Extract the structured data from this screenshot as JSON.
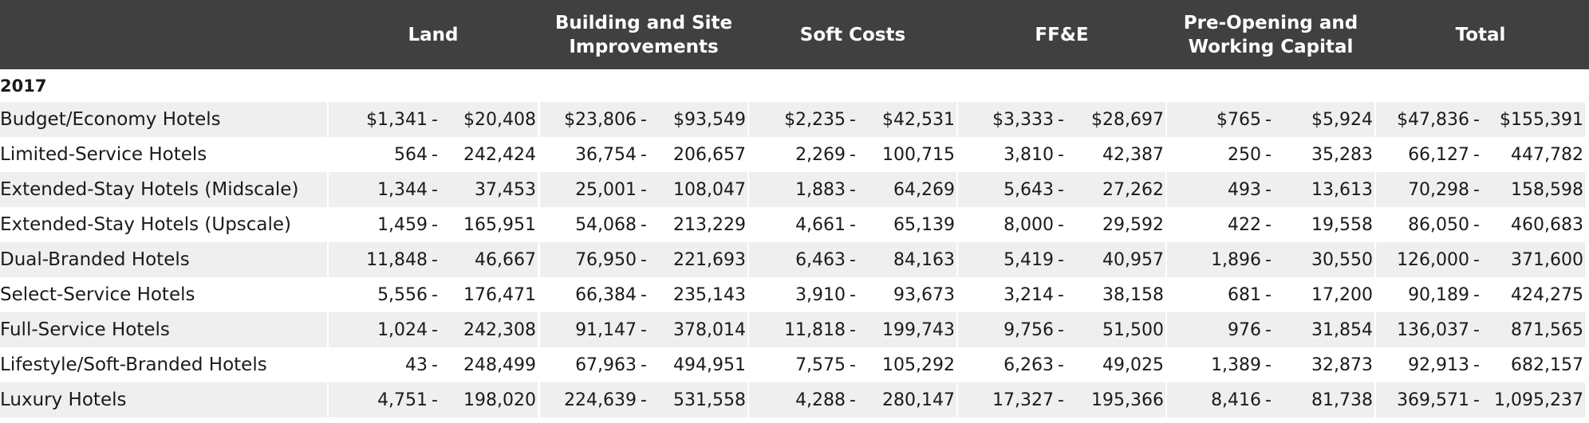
{
  "header": {
    "columns": [
      "Land",
      "Building and Site Improvements",
      "Soft Costs",
      "FF&E",
      "Pre-Opening and Working Capital",
      "Total"
    ]
  },
  "section_label": "2017",
  "rows": [
    {
      "label": "Budget/Economy Hotels",
      "values": [
        [
          "$1,341",
          "$20,408"
        ],
        [
          "$23,806",
          "$93,549"
        ],
        [
          "$2,235",
          "$42,531"
        ],
        [
          "$3,333",
          "$28,697"
        ],
        [
          "$765",
          "$5,924"
        ],
        [
          "$47,836",
          "$155,391"
        ]
      ]
    },
    {
      "label": "Limited-Service Hotels",
      "values": [
        [
          "564",
          "242,424"
        ],
        [
          "36,754",
          "206,657"
        ],
        [
          "2,269",
          "100,715"
        ],
        [
          "3,810",
          "42,387"
        ],
        [
          "250",
          "35,283"
        ],
        [
          "66,127",
          "447,782"
        ]
      ]
    },
    {
      "label": "Extended-Stay Hotels (Midscale)",
      "values": [
        [
          "1,344",
          "37,453"
        ],
        [
          "25,001",
          "108,047"
        ],
        [
          "1,883",
          "64,269"
        ],
        [
          "5,643",
          "27,262"
        ],
        [
          "493",
          "13,613"
        ],
        [
          "70,298",
          "158,598"
        ]
      ]
    },
    {
      "label": "Extended-Stay Hotels (Upscale)",
      "values": [
        [
          "1,459",
          "165,951"
        ],
        [
          "54,068",
          "213,229"
        ],
        [
          "4,661",
          "65,139"
        ],
        [
          "8,000",
          "29,592"
        ],
        [
          "422",
          "19,558"
        ],
        [
          "86,050",
          "460,683"
        ]
      ]
    },
    {
      "label": "Dual-Branded Hotels",
      "values": [
        [
          "11,848",
          "46,667"
        ],
        [
          "76,950",
          "221,693"
        ],
        [
          "6,463",
          "84,163"
        ],
        [
          "5,419",
          "40,957"
        ],
        [
          "1,896",
          "30,550"
        ],
        [
          "126,000",
          "371,600"
        ]
      ]
    },
    {
      "label": "Select-Service Hotels",
      "values": [
        [
          "5,556",
          "176,471"
        ],
        [
          "66,384",
          "235,143"
        ],
        [
          "3,910",
          "93,673"
        ],
        [
          "3,214",
          "38,158"
        ],
        [
          "681",
          "17,200"
        ],
        [
          "90,189",
          "424,275"
        ]
      ]
    },
    {
      "label": "Full-Service Hotels",
      "values": [
        [
          "1,024",
          "242,308"
        ],
        [
          "91,147",
          "378,014"
        ],
        [
          "11,818",
          "199,743"
        ],
        [
          "9,756",
          "51,500"
        ],
        [
          "976",
          "31,854"
        ],
        [
          "136,037",
          "871,565"
        ]
      ]
    },
    {
      "label": "Lifestyle/Soft-Branded Hotels",
      "values": [
        [
          "43",
          "248,499"
        ],
        [
          "67,963",
          "494,951"
        ],
        [
          "7,575",
          "105,292"
        ],
        [
          "6,263",
          "49,025"
        ],
        [
          "1,389",
          "32,873"
        ],
        [
          "92,913",
          "682,157"
        ]
      ]
    },
    {
      "label": "Luxury Hotels",
      "values": [
        [
          "4,751",
          "198,020"
        ],
        [
          "224,639",
          "531,558"
        ],
        [
          "4,288",
          "280,147"
        ],
        [
          "17,327",
          "195,366"
        ],
        [
          "8,416",
          "81,738"
        ],
        [
          "369,571",
          "1,095,237"
        ]
      ]
    }
  ]
}
